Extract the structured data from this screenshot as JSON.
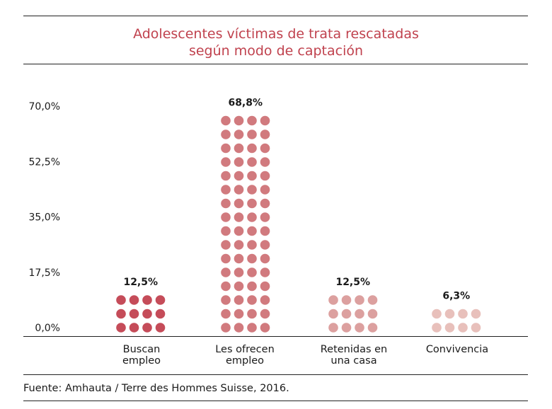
{
  "title": {
    "line1": "Adolescentes víctimas de trata rescatadas",
    "line2": "según modo de captación"
  },
  "source": "Fuente: Amhauta / Terre des Hommes Suisse, 2016.",
  "colors": {
    "title": "#c0424e",
    "series": [
      "#c54c59",
      "#d17a7e",
      "#dca09f",
      "#e8c0bb"
    ]
  },
  "chart_data": {
    "type": "bar",
    "style": "dot-column",
    "categories": [
      [
        "Buscan",
        "empleo"
      ],
      [
        "Les ofrecen",
        "empleo"
      ],
      [
        "Retenidas en",
        "una casa"
      ],
      [
        "Convivencia"
      ]
    ],
    "values": [
      12.5,
      68.8,
      12.5,
      6.3
    ],
    "value_labels": [
      "12,5%",
      "68,8%",
      "12,5%",
      "6,3%"
    ],
    "dot_rows": [
      3,
      16,
      3,
      2
    ],
    "dots_per_row": 4,
    "yticks": [
      "70,0%",
      "52,5%",
      "35,0%",
      "17,5%",
      "0,0%"
    ],
    "ytick_values": [
      70,
      52.5,
      35,
      17.5,
      0
    ],
    "ylim": [
      0,
      70
    ],
    "xlabel": "",
    "ylabel": "",
    "grid": false,
    "legend": "none"
  }
}
